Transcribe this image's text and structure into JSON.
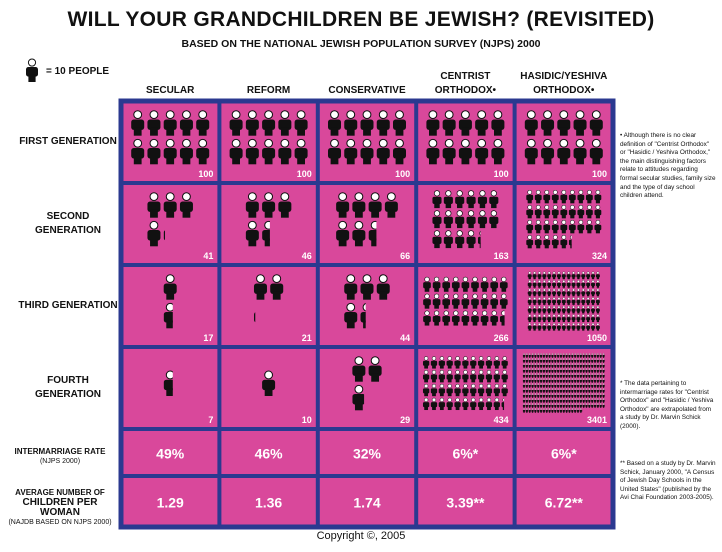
{
  "chart_data": {
    "type": "pictogram",
    "title": "WILL YOUR GRANDCHILDREN BE JEWISH? (REVISITED)",
    "subtitle": "BASED ON THE NATIONAL JEWISH POPULATION SURVEY (NJPS) 2000",
    "unit": {
      "value": 10,
      "label": "= 10 PEOPLE"
    },
    "categories": [
      "SECULAR",
      "REFORM",
      "CONSERVATIVE",
      "CENTRIST ORTHODOX•",
      "HASIDIC/YESHIVA ORTHODOX•"
    ],
    "series": [
      {
        "name": "FIRST GENERATION",
        "values": [
          100,
          100,
          100,
          100,
          100
        ]
      },
      {
        "name": "SECOND GENERATION",
        "values": [
          41,
          46,
          66,
          163,
          324
        ]
      },
      {
        "name": "THIRD GENERATION",
        "values": [
          17,
          21,
          44,
          266,
          1050
        ]
      },
      {
        "name": "FOURTH GENERATION",
        "values": [
          7,
          10,
          29,
          434,
          3401
        ]
      }
    ],
    "rates": [
      {
        "name": "INTERMARRIAGE RATE",
        "note": "(NJPS 2000)",
        "values": [
          49,
          46,
          32,
          6,
          6
        ],
        "value_labels": [
          "49%",
          "46%",
          "32%",
          "6%*",
          "6%*"
        ]
      },
      {
        "name": "AVERAGE NUMBER OF",
        "name2": "CHILDREN PER WOMAN",
        "note": "(NAJDB BASED ON NJPS 2000)",
        "values": [
          1.29,
          1.36,
          1.74,
          3.39,
          6.72
        ],
        "value_labels": [
          "1.29",
          "1.36",
          "1.74",
          "3.39**",
          "6.72**"
        ]
      }
    ],
    "notes": [
      "• Although there is no clear definition of \"Centrist Orthodox\" or \"Hasidic / Yeshiva Orthodox,\" the main distinguishing factors relate to attitudes regarding formal secular studies, family size and the type of day school children attend.",
      "* The data pertaining to intermarriage rates for \"Centrist Orthodox\" and \"Hasidic / Yeshiva Orthodox\" are extrapolated from a study by Dr. Marvin Schick (2000).",
      "** Based on a study by Dr. Marvin Schick, January 2000, \"A Census of Jewish Day Schools in the United States\" (published by the Avi Chai Foundation 2003-2005)."
    ],
    "footer": "Copyright ©, 2005"
  }
}
